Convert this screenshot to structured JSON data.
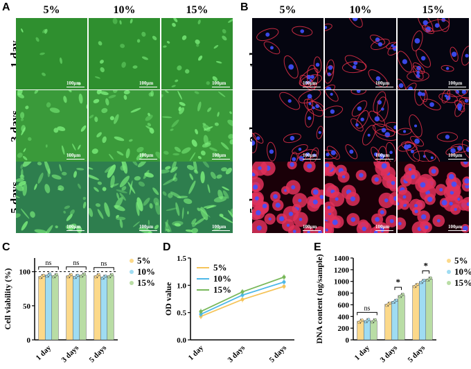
{
  "panel_a": {
    "letter": "A",
    "columns": [
      "5%",
      "10%",
      "15%"
    ],
    "rows": [
      "1 day",
      "3 days",
      "5 days"
    ],
    "scale_label": "100μm",
    "colors": {
      "bg": "#2f8c2f",
      "cell": "#7df07d"
    }
  },
  "panel_b": {
    "letter": "B",
    "columns": [
      "5%",
      "10%",
      "15%"
    ],
    "rows": [
      "1 day",
      "3 days",
      "5 days"
    ],
    "scale_label": "100μm",
    "colors": {
      "bg": "#050510",
      "actin": "#e8304a",
      "nucleus": "#4050ff",
      "day5_bg": "#8a0020"
    }
  },
  "chart_data": [
    {
      "type": "bar",
      "panel": "C",
      "categories": [
        "1 day",
        "3 days",
        "5 days"
      ],
      "series": [
        {
          "name": "5%",
          "values": [
            93,
            94,
            94
          ],
          "color": "#fcd98a"
        },
        {
          "name": "10%",
          "values": [
            95,
            93,
            92
          ],
          "color": "#9fdcf2"
        },
        {
          "name": "15%",
          "values": [
            94,
            95,
            94
          ],
          "color": "#b9dda5"
        }
      ],
      "ylabel": "Cell viability (%)",
      "ylim": [
        0,
        120
      ],
      "yticks": [
        "0",
        "50",
        "100"
      ],
      "reference_line": 100,
      "annotations": [
        "ns",
        "ns",
        "ns"
      ]
    },
    {
      "type": "line",
      "panel": "D",
      "categories": [
        "1 day",
        "3 days",
        "5 days"
      ],
      "series": [
        {
          "name": "5%",
          "values": [
            0.43,
            0.74,
            0.98
          ],
          "color": "#f5c45a"
        },
        {
          "name": "10%",
          "values": [
            0.47,
            0.82,
            1.06
          ],
          "color": "#4db8e8"
        },
        {
          "name": "15%",
          "values": [
            0.52,
            0.88,
            1.15
          ],
          "color": "#78b85a"
        }
      ],
      "ylabel": "OD value",
      "ylim": [
        0.0,
        1.5
      ],
      "yticks": [
        "0.0",
        "0.5",
        "1.0",
        "1.5"
      ]
    },
    {
      "type": "bar",
      "panel": "E",
      "categories": [
        "1 day",
        "3 days",
        "5 days"
      ],
      "series": [
        {
          "name": "5%",
          "values": [
            320,
            610,
            930
          ],
          "color": "#fcd98a"
        },
        {
          "name": "10%",
          "values": [
            330,
            660,
            1000
          ],
          "color": "#9fdcf2"
        },
        {
          "name": "15%",
          "values": [
            325,
            760,
            1040
          ],
          "color": "#b9dda5"
        }
      ],
      "ylabel": "DNA content (ng/sample)",
      "ylim": [
        0,
        1400
      ],
      "yticks": [
        "0",
        "200",
        "400",
        "600",
        "800",
        "1000",
        "1200",
        "1400"
      ],
      "annotations": [
        "ns",
        "*",
        "*"
      ]
    }
  ],
  "panel_letters": {
    "c": "C",
    "d": "D",
    "e": "E"
  }
}
